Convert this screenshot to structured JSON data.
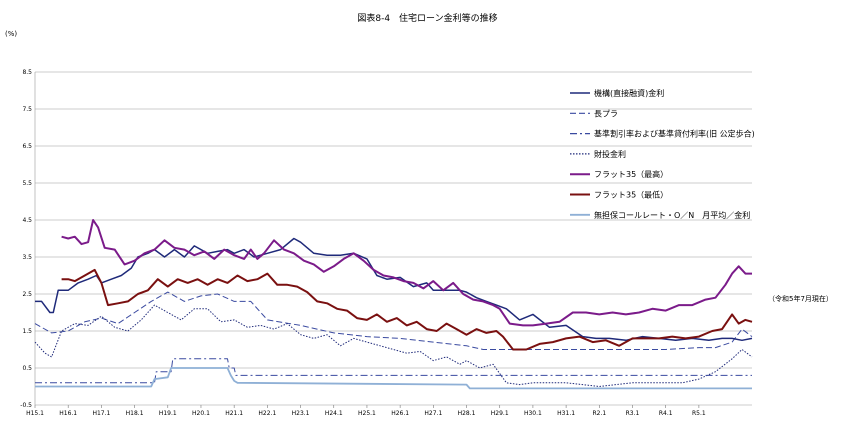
{
  "chart_data": {
    "type": "line",
    "title": "図表8-4　住宅ローン金利等の推移",
    "ylabel": "(%)",
    "note": "（令和5年7月現在）",
    "ylim": [
      -0.5,
      8.5
    ],
    "yticks": [
      -0.5,
      0.5,
      1.5,
      2.5,
      3.5,
      4.5,
      5.5,
      6.5,
      7.5,
      8.5
    ],
    "ytick_labels": [
      "-0.5",
      "0.5",
      "1.5",
      "2.5",
      "3.5",
      "4.5",
      "5.5",
      "6.5",
      "7.5",
      "8.5"
    ],
    "xlim": [
      2003,
      2024.6
    ],
    "xticks": [
      2003,
      2004,
      2005,
      2006,
      2007,
      2008,
      2009,
      2010,
      2011,
      2012,
      2013,
      2014,
      2015,
      2016,
      2017,
      2018,
      2019,
      2020,
      2021,
      2022,
      2023
    ],
    "xtick_labels": [
      "H15.1",
      "H16.1",
      "H17.1",
      "H18.1",
      "H19.1",
      "H20.1",
      "H21.1",
      "H22.1",
      "H23.1",
      "H24.1",
      "H25.1",
      "H26.1",
      "H27.1",
      "H28.1",
      "H29.1",
      "H30.1",
      "H31.1",
      "R2.1",
      "R3.1",
      "R4.1",
      "R5.1"
    ],
    "grid": "horizontal",
    "legend_position": "top-right",
    "series": [
      {
        "name": "機構(直接融資)金利",
        "color": "#1f2a7a",
        "style": "solid",
        "width": 1.5,
        "x": [
          2003.0,
          2003.2,
          2003.45,
          2003.55,
          2003.7,
          2003.85,
          2004.0,
          2004.3,
          2004.6,
          2004.85,
          2005.0,
          2005.3,
          2005.6,
          2005.9,
          2006.1,
          2006.4,
          2006.6,
          2006.9,
          2007.2,
          2007.5,
          2007.8,
          2008.2,
          2008.5,
          2008.8,
          2009.0,
          2009.3,
          2009.6,
          2010.0,
          2010.4,
          2010.8,
          2011.0,
          2011.4,
          2011.8,
          2012.2,
          2012.6,
          2013.0,
          2013.3,
          2013.6,
          2014.0,
          2014.4,
          2014.8,
          2015.0,
          2015.4,
          2015.8,
          2016.0,
          2016.3,
          2016.6,
          2016.9,
          2017.2,
          2017.6,
          2018.0,
          2018.5,
          2019.0,
          2019.5,
          2019.9,
          2020.3,
          2020.8,
          2021.3,
          2021.8,
          2022.3,
          2022.8,
          2023.3,
          2023.7,
          2024.0,
          2024.3,
          2024.6
        ],
        "values": [
          2.3,
          2.3,
          2.0,
          2.0,
          2.6,
          2.6,
          2.6,
          2.8,
          2.9,
          3.0,
          2.8,
          2.9,
          3.0,
          3.2,
          3.5,
          3.6,
          3.7,
          3.5,
          3.7,
          3.5,
          3.8,
          3.6,
          3.65,
          3.7,
          3.6,
          3.7,
          3.5,
          3.6,
          3.7,
          4.0,
          3.9,
          3.6,
          3.55,
          3.55,
          3.6,
          3.45,
          3.0,
          2.9,
          2.95,
          2.7,
          2.8,
          2.6,
          2.6,
          2.6,
          2.55,
          2.4,
          2.3,
          2.2,
          2.1,
          1.8,
          1.95,
          1.6,
          1.65,
          1.35,
          1.3,
          1.3,
          1.25,
          1.35,
          1.3,
          1.25,
          1.3,
          1.25,
          1.3,
          1.3,
          1.25,
          1.3
        ]
      },
      {
        "name": "長プラ",
        "color": "#3a4aa0",
        "style": "dashed",
        "width": 1,
        "x": [
          2003.0,
          2003.5,
          2004.0,
          2004.5,
          2005.0,
          2005.5,
          2006.0,
          2006.5,
          2007.0,
          2007.5,
          2008.0,
          2008.5,
          2009.0,
          2009.5,
          2010.0,
          2011.0,
          2012.0,
          2013.0,
          2014.0,
          2015.0,
          2016.0,
          2016.5,
          2017.0,
          2018.0,
          2019.0,
          2020.0,
          2021.0,
          2022.0,
          2023.0,
          2023.5,
          2024.0,
          2024.3,
          2024.6
        ],
        "values": [
          1.7,
          1.45,
          1.5,
          1.75,
          1.85,
          1.7,
          2.0,
          2.3,
          2.55,
          2.3,
          2.45,
          2.5,
          2.3,
          2.3,
          1.8,
          1.65,
          1.45,
          1.35,
          1.3,
          1.2,
          1.1,
          1.0,
          1.0,
          1.0,
          1.0,
          1.0,
          1.0,
          1.0,
          1.05,
          1.05,
          1.2,
          1.55,
          1.35
        ]
      },
      {
        "name": "基準割引率および基準貸付利率(旧 公定歩合)",
        "color": "#3a4aa0",
        "style": "dashdot",
        "width": 1,
        "x": [
          2003.0,
          2006.6,
          2006.65,
          2007.1,
          2007.15,
          2008.8,
          2008.85,
          2009.0,
          2009.05,
          2024.6
        ],
        "values": [
          0.1,
          0.1,
          0.4,
          0.4,
          0.75,
          0.75,
          0.5,
          0.5,
          0.3,
          0.3
        ]
      },
      {
        "name": "財投金利",
        "color": "#1f2a7a",
        "style": "dotted",
        "width": 1,
        "x": [
          2003.0,
          2003.3,
          2003.5,
          2003.8,
          2004.2,
          2004.6,
          2005.0,
          2005.4,
          2005.8,
          2006.2,
          2006.6,
          2007.0,
          2007.4,
          2007.8,
          2008.2,
          2008.6,
          2009.0,
          2009.4,
          2009.8,
          2010.2,
          2010.6,
          2011.0,
          2011.4,
          2011.8,
          2012.2,
          2012.6,
          2013.0,
          2013.4,
          2013.8,
          2014.2,
          2014.6,
          2015.0,
          2015.4,
          2015.8,
          2016.0,
          2016.4,
          2016.8,
          2017.2,
          2017.6,
          2018.0,
          2018.5,
          2019.0,
          2019.5,
          2020.0,
          2020.5,
          2021.0,
          2021.5,
          2022.0,
          2022.5,
          2023.0,
          2023.5,
          2024.0,
          2024.3,
          2024.6
        ],
        "values": [
          1.2,
          0.9,
          0.8,
          1.5,
          1.7,
          1.65,
          1.9,
          1.6,
          1.5,
          1.8,
          2.2,
          2.0,
          1.8,
          2.1,
          2.1,
          1.75,
          1.8,
          1.6,
          1.65,
          1.55,
          1.7,
          1.4,
          1.3,
          1.4,
          1.1,
          1.3,
          1.2,
          1.1,
          1.0,
          0.9,
          0.95,
          0.7,
          0.8,
          0.6,
          0.7,
          0.5,
          0.6,
          0.1,
          0.05,
          0.1,
          0.1,
          0.1,
          0.05,
          0.0,
          0.05,
          0.1,
          0.1,
          0.1,
          0.1,
          0.2,
          0.4,
          0.75,
          1.0,
          0.8
        ]
      },
      {
        "name": "フラット35（最高）",
        "color": "#7b1b8a",
        "style": "solid",
        "width": 2,
        "x": [
          2003.8,
          2004.0,
          2004.2,
          2004.4,
          2004.6,
          2004.75,
          2004.9,
          2005.1,
          2005.4,
          2005.7,
          2006.0,
          2006.3,
          2006.6,
          2006.9,
          2007.2,
          2007.5,
          2007.8,
          2008.1,
          2008.4,
          2008.7,
          2009.0,
          2009.3,
          2009.5,
          2009.7,
          2009.9,
          2010.2,
          2010.5,
          2010.8,
          2011.1,
          2011.4,
          2011.7,
          2012.0,
          2012.3,
          2012.6,
          2012.9,
          2013.2,
          2013.5,
          2013.8,
          2014.1,
          2014.4,
          2014.7,
          2015.0,
          2015.3,
          2015.6,
          2015.9,
          2016.2,
          2016.5,
          2016.8,
          2017.0,
          2017.3,
          2017.7,
          2018.0,
          2018.4,
          2018.8,
          2019.2,
          2019.6,
          2020.0,
          2020.4,
          2020.8,
          2021.2,
          2021.6,
          2022.0,
          2022.4,
          2022.8,
          2023.2,
          2023.5,
          2023.8,
          2024.0,
          2024.2,
          2024.4,
          2024.6
        ],
        "values": [
          4.05,
          4.0,
          4.05,
          3.85,
          3.9,
          4.5,
          4.3,
          3.75,
          3.7,
          3.3,
          3.4,
          3.6,
          3.7,
          3.95,
          3.75,
          3.7,
          3.55,
          3.65,
          3.45,
          3.7,
          3.55,
          3.45,
          3.7,
          3.45,
          3.6,
          3.95,
          3.7,
          3.6,
          3.4,
          3.3,
          3.1,
          3.25,
          3.45,
          3.6,
          3.4,
          3.15,
          3.0,
          2.95,
          2.85,
          2.8,
          2.65,
          2.85,
          2.6,
          2.8,
          2.5,
          2.35,
          2.3,
          2.2,
          2.1,
          1.7,
          1.65,
          1.65,
          1.7,
          1.75,
          2.0,
          2.0,
          1.95,
          2.0,
          1.95,
          2.0,
          2.1,
          2.05,
          2.2,
          2.2,
          2.35,
          2.4,
          2.75,
          3.05,
          3.25,
          3.05,
          3.05
        ]
      },
      {
        "name": "フラット35（最低）",
        "color": "#7a1010",
        "style": "solid",
        "width": 2,
        "x": [
          2003.8,
          2004.0,
          2004.2,
          2004.5,
          2004.8,
          2005.0,
          2005.2,
          2005.5,
          2005.8,
          2006.1,
          2006.4,
          2006.7,
          2007.0,
          2007.3,
          2007.6,
          2007.9,
          2008.2,
          2008.5,
          2008.8,
          2009.1,
          2009.4,
          2009.7,
          2010.0,
          2010.3,
          2010.6,
          2010.9,
          2011.2,
          2011.5,
          2011.8,
          2012.1,
          2012.4,
          2012.7,
          2013.0,
          2013.3,
          2013.6,
          2013.9,
          2014.2,
          2014.5,
          2014.8,
          2015.1,
          2015.4,
          2015.7,
          2016.0,
          2016.3,
          2016.6,
          2016.9,
          2017.1,
          2017.4,
          2017.8,
          2018.2,
          2018.6,
          2019.0,
          2019.4,
          2019.8,
          2020.2,
          2020.6,
          2021.0,
          2021.4,
          2021.8,
          2022.2,
          2022.6,
          2023.0,
          2023.4,
          2023.7,
          2024.0,
          2024.2,
          2024.4,
          2024.6
        ],
        "values": [
          2.9,
          2.9,
          2.85,
          3.0,
          3.15,
          2.8,
          2.2,
          2.25,
          2.3,
          2.5,
          2.6,
          2.9,
          2.7,
          2.9,
          2.8,
          2.9,
          2.75,
          2.9,
          2.8,
          3.0,
          2.85,
          2.9,
          3.05,
          2.75,
          2.75,
          2.7,
          2.55,
          2.3,
          2.25,
          2.1,
          2.05,
          1.85,
          1.8,
          1.95,
          1.75,
          1.85,
          1.65,
          1.75,
          1.55,
          1.5,
          1.7,
          1.55,
          1.4,
          1.55,
          1.45,
          1.5,
          1.35,
          1.0,
          1.0,
          1.15,
          1.2,
          1.3,
          1.35,
          1.2,
          1.25,
          1.1,
          1.3,
          1.3,
          1.3,
          1.35,
          1.3,
          1.35,
          1.5,
          1.55,
          1.95,
          1.7,
          1.8,
          1.75
        ]
      },
      {
        "name": "無担保コールレート・O／N　月平均／金利",
        "color": "#8fb0d6",
        "style": "solid",
        "width": 1.8,
        "x": [
          2003.0,
          2006.5,
          2006.6,
          2007.0,
          2007.1,
          2008.8,
          2008.9,
          2009.0,
          2009.1,
          2016.0,
          2016.1,
          2024.6
        ],
        "values": [
          0.0,
          0.0,
          0.2,
          0.25,
          0.5,
          0.5,
          0.3,
          0.15,
          0.1,
          0.05,
          -0.05,
          -0.05
        ]
      }
    ]
  }
}
